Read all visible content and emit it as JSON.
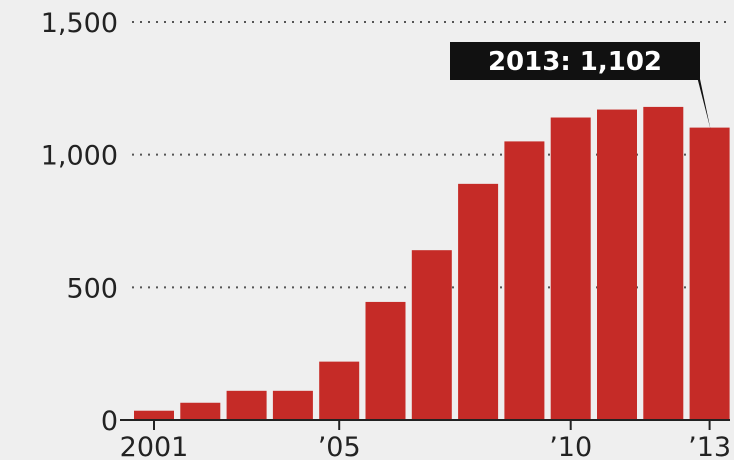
{
  "chart_data": {
    "type": "bar",
    "categories": [
      "2001",
      "2002",
      "2003",
      "2004",
      "2005",
      "2006",
      "2007",
      "2008",
      "2009",
      "2010",
      "2011",
      "2012",
      "2013"
    ],
    "values": [
      35,
      65,
      110,
      110,
      220,
      445,
      640,
      890,
      1050,
      1140,
      1170,
      1180,
      1102
    ],
    "ylim": [
      0,
      1500
    ],
    "y_ticks": [
      0,
      500,
      1000,
      1500
    ],
    "y_tick_labels": [
      "0",
      "500",
      "1,000",
      "1,500"
    ],
    "x_ticks": [
      {
        "category": "2001",
        "label": "2001"
      },
      {
        "category": "2005",
        "label": "’05"
      },
      {
        "category": "2010",
        "label": "’10"
      },
      {
        "category": "2013",
        "label": "’13"
      }
    ],
    "grid": true,
    "bar_color": "#c52b27",
    "annotation": {
      "category": "2013",
      "text": "2013: 1,102"
    }
  }
}
